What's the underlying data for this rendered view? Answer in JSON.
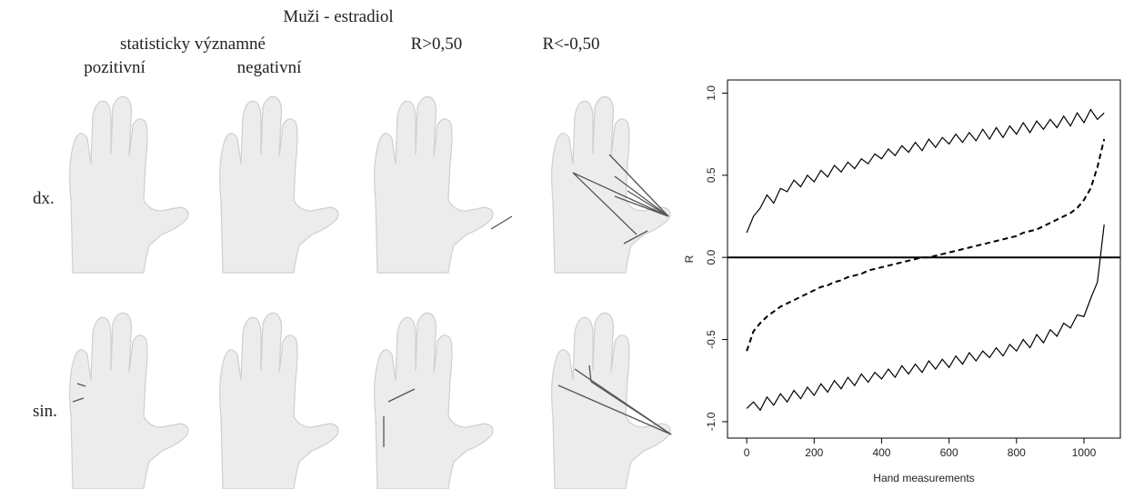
{
  "panels": {
    "title": "Muži - estradiol",
    "group_header": "statisticky významné",
    "columns": [
      "pozitivní",
      "negativní",
      "R>0,50",
      "R<-0,50"
    ],
    "rows": [
      "dx.",
      "sin."
    ]
  },
  "chart_data": {
    "type": "line",
    "xlabel": "Hand measurements",
    "ylabel": "R",
    "xlim": [
      -57,
      1108
    ],
    "ylim": [
      -1.1,
      1.08
    ],
    "xticks": [
      0,
      200,
      400,
      600,
      800,
      1000
    ],
    "yticks": [
      {
        "value": -1,
        "label": "-1.0"
      },
      {
        "value": -0.5,
        "label": "-0.5"
      },
      {
        "value": 0,
        "label": "0.0"
      },
      {
        "value": 0.5,
        "label": "0.5"
      },
      {
        "value": 1,
        "label": "1.0"
      }
    ],
    "reference_line": 0,
    "x": [
      0,
      20,
      40,
      60,
      80,
      100,
      120,
      140,
      160,
      180,
      200,
      220,
      240,
      260,
      280,
      300,
      320,
      340,
      360,
      380,
      400,
      420,
      440,
      460,
      480,
      500,
      520,
      540,
      560,
      580,
      600,
      620,
      640,
      660,
      680,
      700,
      720,
      740,
      760,
      780,
      800,
      820,
      840,
      860,
      880,
      900,
      920,
      940,
      960,
      980,
      1000,
      1020,
      1040,
      1060
    ],
    "series": [
      {
        "color": "#000000",
        "dash": false,
        "values": [
          0.15,
          0.25,
          0.3,
          0.38,
          0.33,
          0.42,
          0.4,
          0.47,
          0.43,
          0.5,
          0.46,
          0.53,
          0.49,
          0.56,
          0.52,
          0.58,
          0.54,
          0.6,
          0.57,
          0.63,
          0.6,
          0.66,
          0.62,
          0.68,
          0.64,
          0.7,
          0.65,
          0.72,
          0.67,
          0.73,
          0.69,
          0.75,
          0.7,
          0.76,
          0.71,
          0.78,
          0.72,
          0.79,
          0.73,
          0.8,
          0.75,
          0.82,
          0.76,
          0.83,
          0.78,
          0.84,
          0.79,
          0.86,
          0.8,
          0.88,
          0.82,
          0.9,
          0.84,
          0.88
        ]
      },
      {
        "color": "#000000",
        "dash": false,
        "values": [
          -0.92,
          -0.88,
          -0.93,
          -0.85,
          -0.9,
          -0.83,
          -0.88,
          -0.81,
          -0.86,
          -0.79,
          -0.84,
          -0.77,
          -0.82,
          -0.75,
          -0.8,
          -0.73,
          -0.78,
          -0.71,
          -0.76,
          -0.7,
          -0.74,
          -0.68,
          -0.73,
          -0.66,
          -0.71,
          -0.65,
          -0.7,
          -0.63,
          -0.68,
          -0.62,
          -0.67,
          -0.6,
          -0.65,
          -0.58,
          -0.63,
          -0.57,
          -0.61,
          -0.55,
          -0.6,
          -0.53,
          -0.57,
          -0.5,
          -0.55,
          -0.47,
          -0.52,
          -0.44,
          -0.48,
          -0.4,
          -0.43,
          -0.35,
          -0.36,
          -0.25,
          -0.15,
          0.2
        ]
      },
      {
        "color": "#000000",
        "dash": true,
        "values": [
          -0.57,
          -0.45,
          -0.4,
          -0.36,
          -0.33,
          -0.3,
          -0.28,
          -0.26,
          -0.24,
          -0.22,
          -0.2,
          -0.18,
          -0.17,
          -0.15,
          -0.14,
          -0.12,
          -0.11,
          -0.1,
          -0.08,
          -0.07,
          -0.06,
          -0.05,
          -0.04,
          -0.03,
          -0.02,
          -0.01,
          0,
          0,
          0.01,
          0.02,
          0.03,
          0.04,
          0.05,
          0.06,
          0.07,
          0.08,
          0.09,
          0.1,
          0.11,
          0.12,
          0.13,
          0.15,
          0.16,
          0.17,
          0.19,
          0.21,
          0.23,
          0.25,
          0.27,
          0.3,
          0.35,
          0.42,
          0.55,
          0.72
        ]
      }
    ]
  }
}
